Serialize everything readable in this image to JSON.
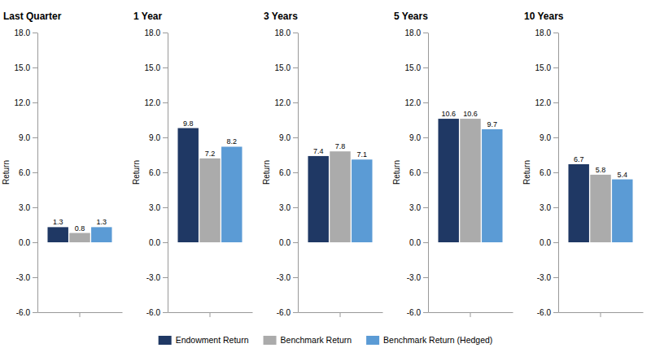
{
  "chart_data": [
    {
      "type": "bar",
      "title": "Last Quarter",
      "ylabel": "Return",
      "categories": [
        null
      ],
      "series": [
        {
          "name": "Endowment Return",
          "color": "#1F3864",
          "values": [
            1.3
          ]
        },
        {
          "name": "Benchmark Return",
          "color": "#ABABAB",
          "values": [
            0.8
          ]
        },
        {
          "name": "Benchmark Return (Hedged)",
          "color": "#5B9BD5",
          "values": [
            1.3
          ]
        }
      ],
      "ylim": [
        -6.0,
        18.0
      ],
      "yticks": [
        {
          "value": -6,
          "label": "-6.0"
        },
        {
          "value": -3,
          "label": "-3.0"
        },
        {
          "value": 0,
          "label": "0.0"
        },
        {
          "value": 3,
          "label": "3.0"
        },
        {
          "value": 6,
          "label": "6.0"
        },
        {
          "value": 9,
          "label": "9.0"
        },
        {
          "value": 12,
          "label": "12.0"
        },
        {
          "value": 15,
          "label": "15.0"
        },
        {
          "value": 18,
          "label": "18.0"
        }
      ],
      "data_labels": true,
      "tick_labels": "y",
      "legend": "bottom"
    },
    {
      "type": "bar",
      "title": "1 Year",
      "ylabel": "Return",
      "categories": [
        null
      ],
      "series": [
        {
          "name": "Endowment Return",
          "color": "#1F3864",
          "values": [
            9.8
          ]
        },
        {
          "name": "Benchmark Return",
          "color": "#ABABAB",
          "values": [
            7.2
          ]
        },
        {
          "name": "Benchmark Return (Hedged)",
          "color": "#5B9BD5",
          "values": [
            8.2
          ]
        }
      ],
      "ylim": [
        -6.0,
        18.0
      ],
      "yticks": [
        {
          "value": -6,
          "label": "-6.0"
        },
        {
          "value": -3,
          "label": "-3.0"
        },
        {
          "value": 0,
          "label": "0.0"
        },
        {
          "value": 3,
          "label": "3.0"
        },
        {
          "value": 6,
          "label": "6.0"
        },
        {
          "value": 9,
          "label": "9.0"
        },
        {
          "value": 12,
          "label": "12.0"
        },
        {
          "value": 15,
          "label": "15.0"
        },
        {
          "value": 18,
          "label": "18.0"
        }
      ],
      "data_labels": true,
      "tick_labels": "y",
      "legend": "bottom"
    },
    {
      "type": "bar",
      "title": "3 Years",
      "ylabel": "Return",
      "categories": [
        null
      ],
      "series": [
        {
          "name": "Endowment Return",
          "color": "#1F3864",
          "values": [
            7.4
          ]
        },
        {
          "name": "Benchmark Return",
          "color": "#ABABAB",
          "values": [
            7.8
          ]
        },
        {
          "name": "Benchmark Return (Hedged)",
          "color": "#5B9BD5",
          "values": [
            7.1
          ]
        }
      ],
      "ylim": [
        -6.0,
        18.0
      ],
      "yticks": [
        {
          "value": -6,
          "label": "-6.0"
        },
        {
          "value": -3,
          "label": "-3.0"
        },
        {
          "value": 0,
          "label": "0.0"
        },
        {
          "value": 3,
          "label": "3.0"
        },
        {
          "value": 6,
          "label": "6.0"
        },
        {
          "value": 9,
          "label": "9.0"
        },
        {
          "value": 12,
          "label": "12.0"
        },
        {
          "value": 15,
          "label": "15.0"
        },
        {
          "value": 18,
          "label": "18.0"
        }
      ],
      "data_labels": true,
      "tick_labels": "y",
      "legend": "bottom"
    },
    {
      "type": "bar",
      "title": "5 Years",
      "ylabel": "Return",
      "categories": [
        null
      ],
      "series": [
        {
          "name": "Endowment Return",
          "color": "#1F3864",
          "values": [
            10.6
          ]
        },
        {
          "name": "Benchmark Return",
          "color": "#ABABAB",
          "values": [
            10.6
          ]
        },
        {
          "name": "Benchmark Return (Hedged)",
          "color": "#5B9BD5",
          "values": [
            9.7
          ]
        }
      ],
      "ylim": [
        -6.0,
        18.0
      ],
      "yticks": [
        {
          "value": -6,
          "label": "-6.0"
        },
        {
          "value": -3,
          "label": "-3.0"
        },
        {
          "value": 0,
          "label": "0.0"
        },
        {
          "value": 3,
          "label": "3.0"
        },
        {
          "value": 6,
          "label": "6.0"
        },
        {
          "value": 9,
          "label": "9.0"
        },
        {
          "value": 12,
          "label": "12.0"
        },
        {
          "value": 15,
          "label": "15.0"
        },
        {
          "value": 18,
          "label": "18.0"
        }
      ],
      "data_labels": true,
      "tick_labels": "y",
      "legend": "bottom"
    },
    {
      "type": "bar",
      "title": "10 Years",
      "ylabel": "Return",
      "categories": [
        null
      ],
      "series": [
        {
          "name": "Endowment Return",
          "color": "#1F3864",
          "values": [
            6.7
          ]
        },
        {
          "name": "Benchmark Return",
          "color": "#ABABAB",
          "values": [
            5.8
          ]
        },
        {
          "name": "Benchmark Return (Hedged)",
          "color": "#5B9BD5",
          "values": [
            5.4
          ]
        }
      ],
      "ylim": [
        -6.0,
        18.0
      ],
      "yticks": [
        {
          "value": -6,
          "label": "-6.0"
        },
        {
          "value": -3,
          "label": "-3.0"
        },
        {
          "value": 0,
          "label": "0.0"
        },
        {
          "value": 3,
          "label": "3.0"
        },
        {
          "value": 6,
          "label": "6.0"
        },
        {
          "value": 9,
          "label": "9.0"
        },
        {
          "value": 12,
          "label": "12.0"
        },
        {
          "value": 15,
          "label": "15.0"
        },
        {
          "value": 18,
          "label": "18.0"
        }
      ],
      "data_labels": true,
      "tick_labels": "y",
      "legend": "bottom"
    }
  ]
}
